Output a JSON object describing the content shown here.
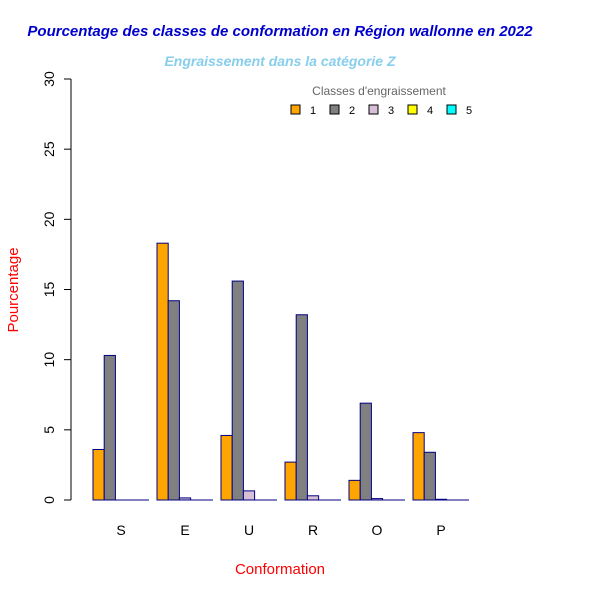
{
  "chart_data": {
    "type": "bar",
    "title": "Pourcentage des classes de conformation en Région wallonne en 2022",
    "subtitle": "Engraissement dans la catégorie Z",
    "xlabel": "Conformation",
    "ylabel": "Pourcentage",
    "ylim": [
      0,
      30
    ],
    "yticks": [
      "0",
      "5",
      "10",
      "15",
      "20",
      "25",
      "30"
    ],
    "categories": [
      "S",
      "E",
      "U",
      "R",
      "O",
      "P"
    ],
    "legend_title": "Classes d'engraissement",
    "legend_position": "top-right",
    "grid": false,
    "series": [
      {
        "name": "1",
        "color": "#FFA500",
        "values": [
          3.6,
          18.3,
          4.6,
          2.7,
          1.4,
          4.8
        ]
      },
      {
        "name": "2",
        "color": "#808080",
        "values": [
          10.3,
          14.2,
          15.6,
          13.2,
          6.9,
          3.4
        ]
      },
      {
        "name": "3",
        "color": "#D8BFD8",
        "values": [
          0.0,
          0.15,
          0.65,
          0.3,
          0.1,
          0.05
        ]
      },
      {
        "name": "4",
        "color": "#FFFF00",
        "values": [
          0,
          0,
          0,
          0,
          0,
          0
        ]
      },
      {
        "name": "5",
        "color": "#00FFFF",
        "values": [
          0,
          0,
          0,
          0,
          0,
          0
        ]
      }
    ],
    "colors": {
      "title": "#0000CD",
      "subtitle": "#87CEEB",
      "axis_title": "#FF0000",
      "bar_border": "#000080"
    }
  }
}
